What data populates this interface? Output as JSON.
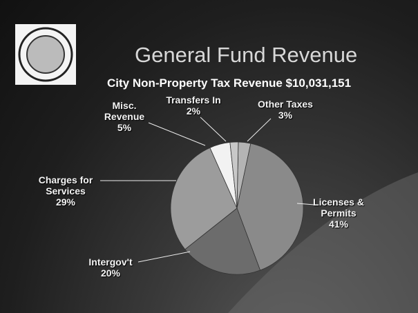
{
  "chart_data": {
    "type": "pie",
    "title": "General Fund Revenue",
    "subtitle": "City Non-Property Tax Revenue  $10,031,151",
    "categories": [
      "Other Taxes",
      "Licenses & Permits",
      "Intergov't",
      "Charges for Services",
      "Misc. Revenue",
      "Transfers In"
    ],
    "values": [
      3,
      41,
      20,
      29,
      5,
      2
    ],
    "value_labels": [
      "3%",
      "41%",
      "20%",
      "29%",
      "5%",
      "2%"
    ],
    "colors": [
      "#b4b4b4",
      "#8a8a8a",
      "#6c6c6c",
      "#9c9c9c",
      "#f2f2f2",
      "#c8c8c8"
    ]
  }
}
